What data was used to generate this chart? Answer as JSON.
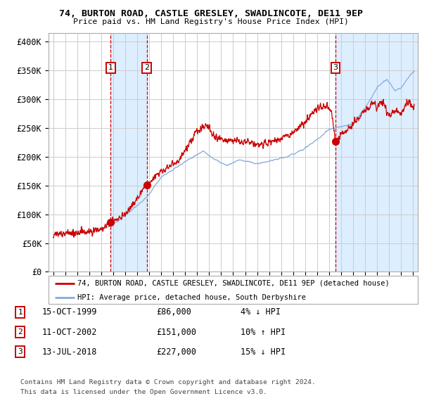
{
  "title_line1": "74, BURTON ROAD, CASTLE GRESLEY, SWADLINCOTE, DE11 9EP",
  "title_line2": "Price paid vs. HM Land Registry's House Price Index (HPI)",
  "yticks": [
    0,
    50000,
    100000,
    150000,
    200000,
    250000,
    300000,
    350000,
    400000
  ],
  "ytick_labels": [
    "£0",
    "£50K",
    "£100K",
    "£150K",
    "£200K",
    "£250K",
    "£300K",
    "£350K",
    "£400K"
  ],
  "ylim": [
    0,
    415000
  ],
  "xlim_start": 1994.6,
  "xlim_end": 2025.4,
  "hpi_color": "#88aadd",
  "price_color": "#cc0000",
  "shade_color": "#ddeeff",
  "background_color": "#ffffff",
  "grid_color": "#cccccc",
  "transaction_dates": [
    1999.79,
    2002.79,
    2018.54
  ],
  "transaction_prices": [
    86000,
    151000,
    227000
  ],
  "transaction_labels": [
    "1",
    "2",
    "3"
  ],
  "legend_price_label": "74, BURTON ROAD, CASTLE GRESLEY, SWADLINCOTE, DE11 9EP (detached house)",
  "legend_hpi_label": "HPI: Average price, detached house, South Derbyshire",
  "table_rows": [
    {
      "num": "1",
      "date": "15-OCT-1999",
      "price": "£86,000",
      "hpi": "4% ↓ HPI"
    },
    {
      "num": "2",
      "date": "11-OCT-2002",
      "price": "£151,000",
      "hpi": "10% ↑ HPI"
    },
    {
      "num": "3",
      "date": "13-JUL-2018",
      "price": "£227,000",
      "hpi": "15% ↓ HPI"
    }
  ],
  "footer_line1": "Contains HM Land Registry data © Crown copyright and database right 2024.",
  "footer_line2": "This data is licensed under the Open Government Licence v3.0.",
  "dashed_line_color": "#cc0000"
}
